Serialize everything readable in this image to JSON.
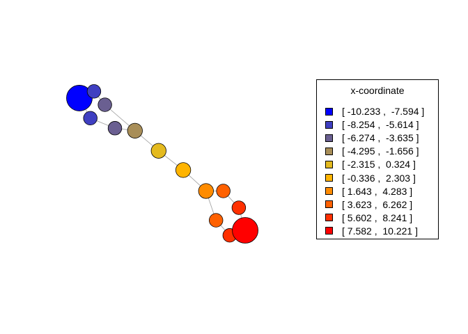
{
  "chart_data": {
    "type": "network",
    "legend_title": "x-coordinate",
    "legend_position": "right",
    "legend": [
      {
        "label": "[ -10.233 ,  -7.594 ]",
        "color": "#0000FF"
      },
      {
        "label": "[ -8.254 ,  -5.614 ]",
        "color": "#3F3FC1"
      },
      {
        "label": "[ -6.274 ,  -3.635 ]",
        "color": "#6A5F91"
      },
      {
        "label": "[ -4.295 ,  -1.656 ]",
        "color": "#A88E58"
      },
      {
        "label": "[ -2.315 ,  0.324 ]",
        "color": "#E4BA1F"
      },
      {
        "label": "[ -0.336 ,  2.303 ]",
        "color": "#FFB400"
      },
      {
        "label": "[ 1.643 ,  4.283 ]",
        "color": "#FF8C00"
      },
      {
        "label": "[ 3.623 ,  6.262 ]",
        "color": "#FF6100"
      },
      {
        "label": "[ 5.602 ,  8.241 ]",
        "color": "#FF3000"
      },
      {
        "label": "[ 7.582 ,  10.221 ]",
        "color": "#FF0000"
      }
    ],
    "nodes": [
      {
        "id": 1,
        "x": -10.2,
        "y": 7.2,
        "size": 3,
        "class": 0
      },
      {
        "id": 2,
        "x": -8.6,
        "y": 8.0,
        "size": 1,
        "class": 1
      },
      {
        "id": 3,
        "x": -7.4,
        "y": 6.4,
        "size": 1,
        "class": 2
      },
      {
        "id": 4,
        "x": -9.0,
        "y": 4.8,
        "size": 1,
        "class": 1
      },
      {
        "id": 5,
        "x": -6.3,
        "y": 3.6,
        "size": 1,
        "class": 2
      },
      {
        "id": 6,
        "x": -4.1,
        "y": 3.3,
        "size": 1.2,
        "class": 3
      },
      {
        "id": 7,
        "x": -1.5,
        "y": 0.9,
        "size": 1.2,
        "class": 4
      },
      {
        "id": 8,
        "x": 1.2,
        "y": -1.4,
        "size": 1.2,
        "class": 5
      },
      {
        "id": 9,
        "x": 3.7,
        "y": -3.9,
        "size": 1.2,
        "class": 6
      },
      {
        "id": 10,
        "x": 5.6,
        "y": -3.9,
        "size": 1,
        "class": 7
      },
      {
        "id": 11,
        "x": 7.3,
        "y": -5.9,
        "size": 1,
        "class": 8
      },
      {
        "id": 12,
        "x": 4.8,
        "y": -7.4,
        "size": 1,
        "class": 7
      },
      {
        "id": 13,
        "x": 6.3,
        "y": -9.2,
        "size": 1,
        "class": 8
      },
      {
        "id": 14,
        "x": 8.0,
        "y": -8.6,
        "size": 3,
        "class": 9
      }
    ],
    "edges": [
      [
        1,
        2
      ],
      [
        2,
        3
      ],
      [
        1,
        4
      ],
      [
        3,
        6
      ],
      [
        4,
        5
      ],
      [
        5,
        6
      ],
      [
        6,
        7
      ],
      [
        7,
        8
      ],
      [
        8,
        9
      ],
      [
        9,
        10
      ],
      [
        10,
        11
      ],
      [
        9,
        12
      ],
      [
        11,
        14
      ],
      [
        12,
        13
      ],
      [
        13,
        14
      ]
    ]
  }
}
